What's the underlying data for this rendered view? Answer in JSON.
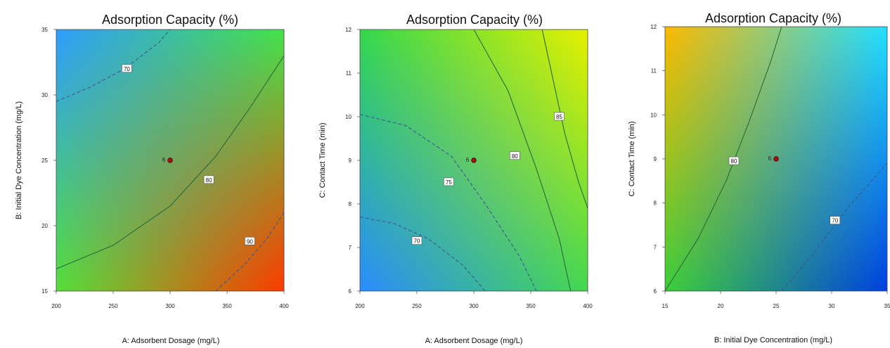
{
  "chart_data": [
    {
      "type": "heatmap",
      "title": "Adsorption Capacity (%)",
      "xlabel": "A: Adsorbent Dosage (mg/L)",
      "ylabel": "B: Initial Dye Concentration (mg/L)",
      "xlim": [
        200,
        400
      ],
      "ylim": [
        15,
        35
      ],
      "xticks": [
        "200",
        "250",
        "300",
        "350",
        "400"
      ],
      "yticks": [
        "15",
        "20",
        "25",
        "30",
        "35"
      ],
      "contours": [
        {
          "level": "70",
          "points": [
            [
              200,
              29.5
            ],
            [
              230,
              30.6
            ],
            [
              260,
              32.0
            ],
            [
              290,
              34.0
            ],
            [
              300,
              35.0
            ]
          ],
          "label_at": [
            262,
            32.0
          ],
          "dashed": true
        },
        {
          "level": "80",
          "points": [
            [
              200,
              16.7
            ],
            [
              250,
              18.5
            ],
            [
              300,
              21.5
            ],
            [
              340,
              25.3
            ],
            [
              370,
              29.0
            ],
            [
              400,
              33.0
            ]
          ],
          "label_at": [
            334,
            23.5
          ],
          "dashed": false
        },
        {
          "level": "90",
          "points": [
            [
              340,
              15.0
            ],
            [
              365,
              17.0
            ],
            [
              385,
              19.0
            ],
            [
              400,
              21.0
            ]
          ],
          "label_at": [
            370,
            18.8
          ],
          "dashed": true
        }
      ],
      "design_point": {
        "x": 300,
        "y": 25,
        "label": "6"
      },
      "color_corners": {
        "top_left": "#2f9cff",
        "top_right": "#44e24a",
        "bottom_left": "#55e03a",
        "bottom_right": "#ff3a00"
      }
    },
    {
      "type": "heatmap",
      "title": "Adsorption Capacity (%)",
      "xlabel": "A: Adsorbent Dosage (mg/L)",
      "ylabel": "C: Contact Time (min)",
      "xlim": [
        200,
        400
      ],
      "ylim": [
        6,
        12
      ],
      "xticks": [
        "200",
        "250",
        "300",
        "350",
        "400"
      ],
      "yticks": [
        "6",
        "7",
        "8",
        "9",
        "10",
        "11",
        "12"
      ],
      "contours": [
        {
          "level": "70",
          "points": [
            [
              200,
              7.7
            ],
            [
              230,
              7.55
            ],
            [
              260,
              7.2
            ],
            [
              290,
              6.6
            ],
            [
              310,
              6.0
            ]
          ],
          "label_at": [
            250,
            7.15
          ],
          "dashed": true
        },
        {
          "level": "75",
          "points": [
            [
              200,
              10.05
            ],
            [
              240,
              9.8
            ],
            [
              280,
              9.1
            ],
            [
              310,
              8.0
            ],
            [
              340,
              6.8
            ],
            [
              355,
              6.0
            ]
          ],
          "label_at": [
            278,
            8.5
          ],
          "dashed": true
        },
        {
          "level": "80",
          "points": [
            [
              300,
              12.0
            ],
            [
              330,
              10.6
            ],
            [
              355,
              8.8
            ],
            [
              375,
              7.2
            ],
            [
              385,
              6.0
            ]
          ],
          "label_at": [
            336,
            9.1
          ],
          "dashed": false
        },
        {
          "level": "85",
          "points": [
            [
              360,
              12.0
            ],
            [
              370,
              10.8
            ],
            [
              380,
              9.6
            ],
            [
              392,
              8.5
            ],
            [
              400,
              7.9
            ]
          ],
          "label_at": [
            375,
            10.0
          ],
          "dashed": false
        }
      ],
      "design_point": {
        "x": 300,
        "y": 9,
        "label": "6"
      },
      "color_corners": {
        "top_left": "#33d84c",
        "top_right": "#e6f000",
        "bottom_left": "#2a8cff",
        "bottom_right": "#44d850"
      }
    },
    {
      "type": "heatmap",
      "title": "Adsorption Capacity (%)",
      "xlabel": "B: Initial Dye Concentration (mg/L)",
      "ylabel": "C: Contact Time (min)",
      "xlim": [
        15,
        35
      ],
      "ylim": [
        6,
        12
      ],
      "xticks": [
        "15",
        "20",
        "25",
        "30",
        "35"
      ],
      "yticks": [
        "6",
        "7",
        "8",
        "9",
        "10",
        "11",
        "12"
      ],
      "contours": [
        {
          "level": "80",
          "points": [
            [
              15,
              6.0
            ],
            [
              18,
              7.2
            ],
            [
              20.5,
              8.5
            ],
            [
              22.5,
              9.8
            ],
            [
              24.5,
              11.2
            ],
            [
              25.5,
              12.0
            ]
          ],
          "label_at": [
            21.2,
            8.95
          ],
          "dashed": false
        },
        {
          "level": "70",
          "points": [
            [
              25.5,
              6.0
            ],
            [
              28.5,
              6.9
            ],
            [
              31.5,
              7.9
            ],
            [
              35,
              8.9
            ]
          ],
          "label_at": [
            30.3,
            7.6
          ],
          "dashed": true
        }
      ],
      "design_point": {
        "x": 25,
        "y": 9,
        "label": "6"
      },
      "color_corners": {
        "top_left": "#ffb800",
        "top_right": "#22e0ff",
        "bottom_left": "#3ccf3a",
        "bottom_right": "#0040e0"
      }
    }
  ]
}
